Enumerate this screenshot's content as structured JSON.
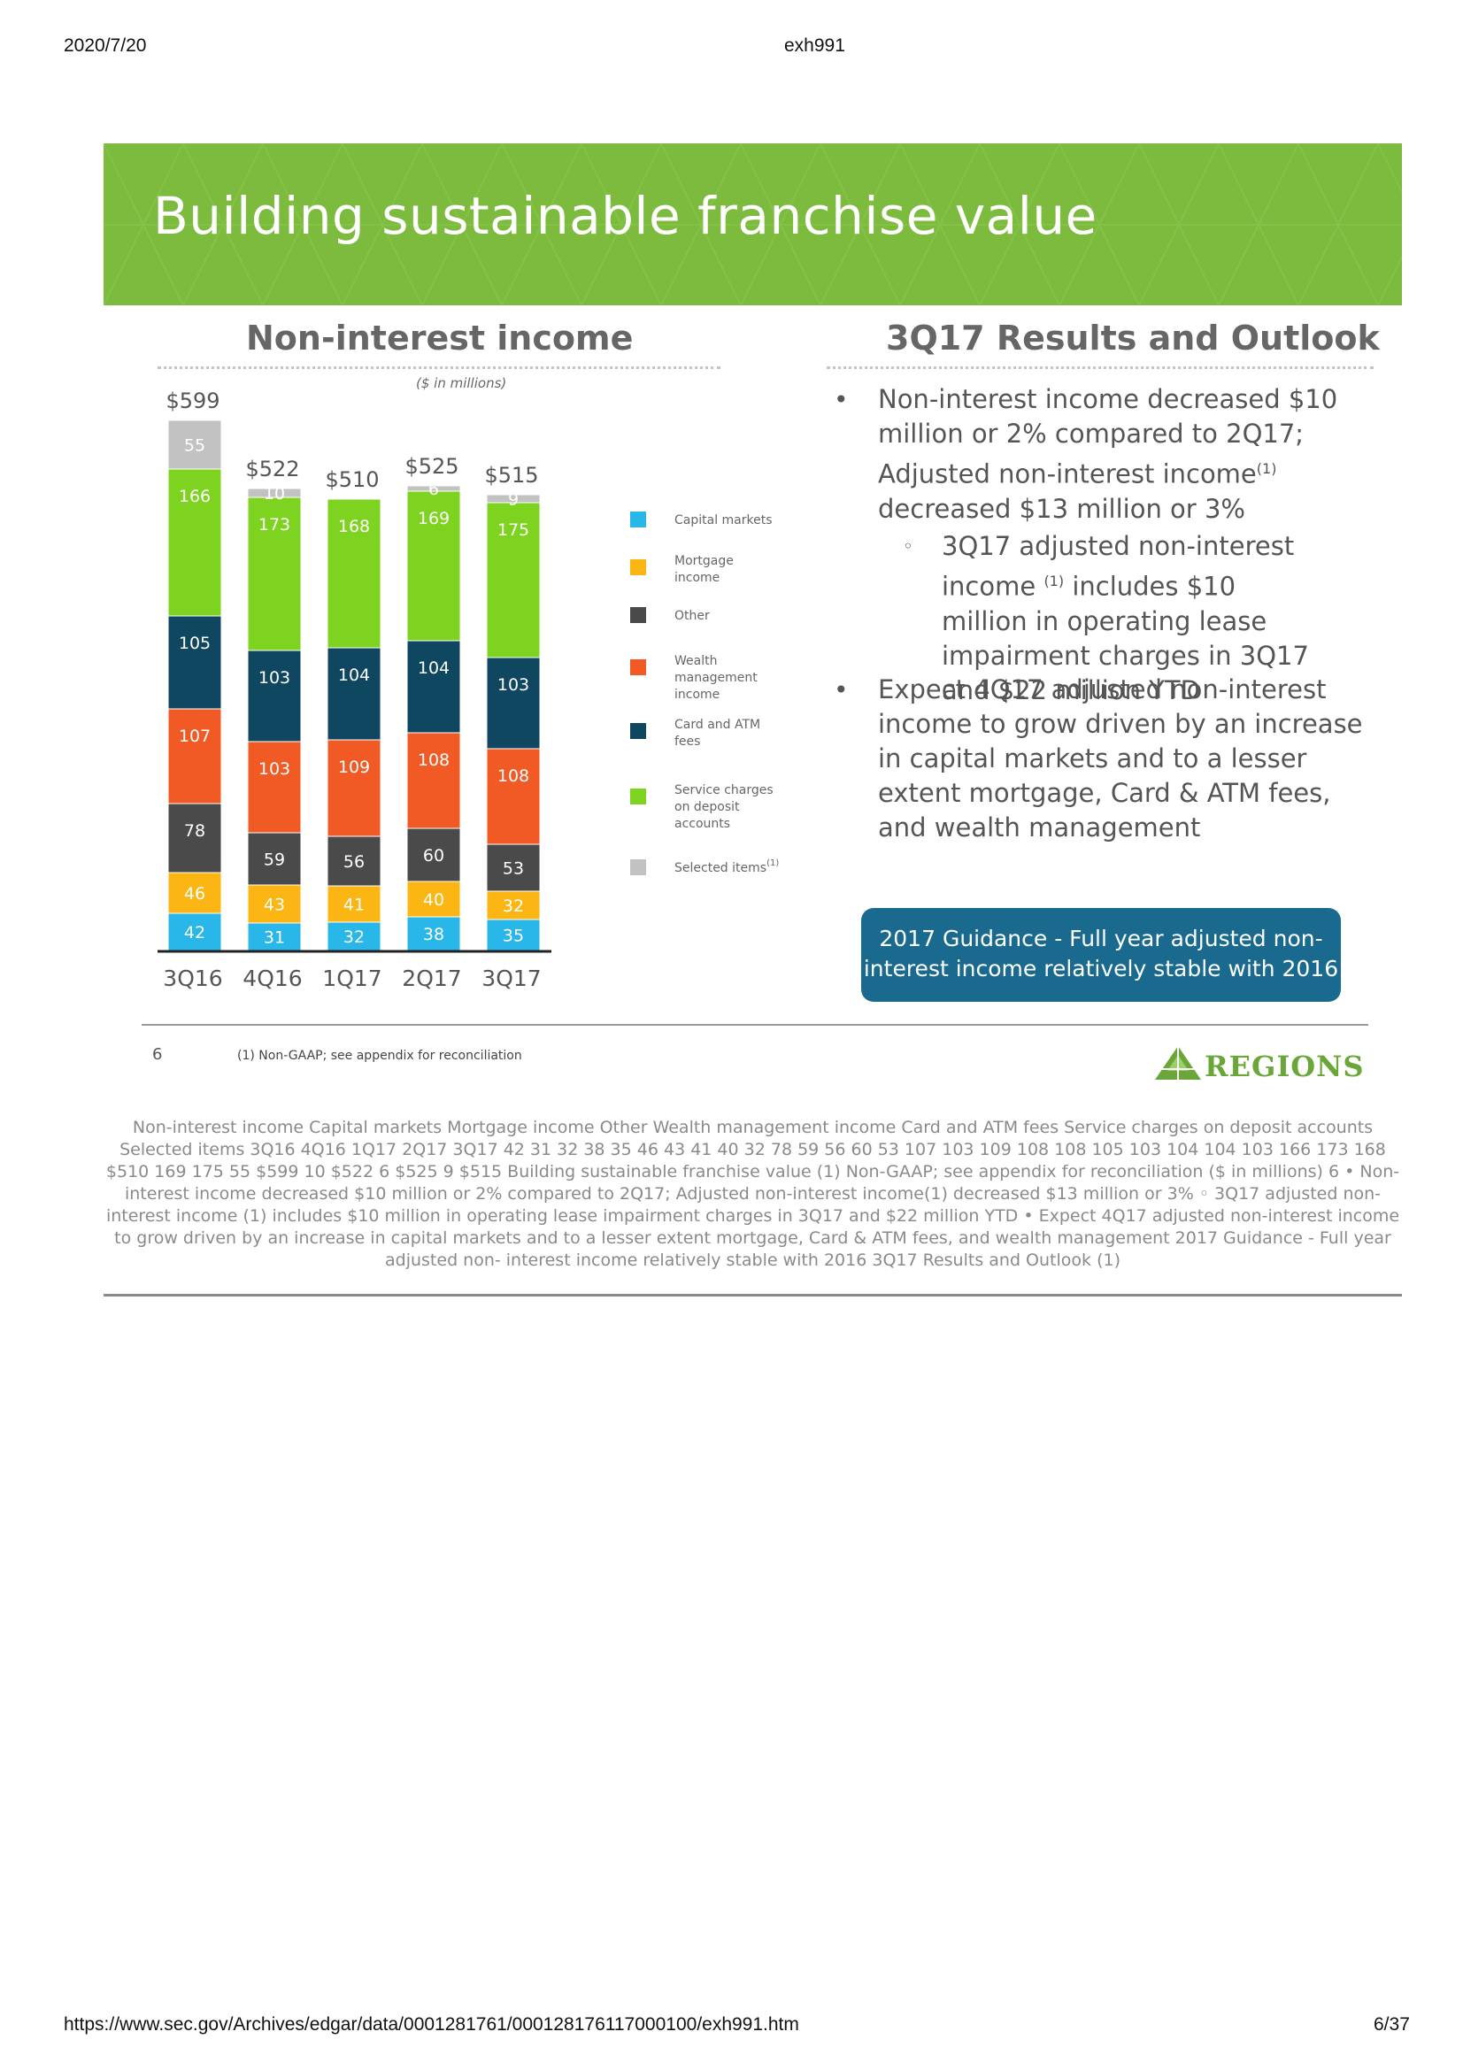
{
  "header": {
    "date": "2020/7/20",
    "doc_name": "exh991"
  },
  "footer": {
    "url": "https://www.sec.gov/Archives/edgar/data/0001281761/000128176117000100/exh991.htm",
    "page": "6/37"
  },
  "banner": {
    "title": "Building sustainable franchise value",
    "color": "#7cbb3e"
  },
  "left_section": {
    "heading": "Non-interest income",
    "units": "($ in millions)"
  },
  "right_section": {
    "heading": "3Q17 Results and Outlook"
  },
  "bullets": {
    "b1": "Non-interest income decreased $10 million or 2% compared to 2Q17; Adjusted non-interest income",
    "b1_sup": "(1)",
    "b1_end": "decreased $13 million or 3%",
    "b1_sub_sup": "(1)",
    "b1_sub_a": "3Q17 adjusted non-interest income",
    "b1_sub_b": "includes $10 million in operating lease impairment charges in 3Q17 and $22 million YTD",
    "b2": "Expect 4Q17 adjusted non-interest income to grow driven by an increase in capital markets and to a lesser extent mortgage, Card & ATM fees, and wealth management"
  },
  "guidance_box": {
    "text": "2017 Guidance - Full year adjusted non-interest income relatively stable with 2016",
    "color": "#1a6a8f"
  },
  "slide_footer": {
    "page_number": "6",
    "footnote": "(1)    Non-GAAP; see appendix for reconciliation"
  },
  "logo": {
    "name": "REGIONS",
    "icon": "regions-pyramid-icon",
    "color": "#6aa638"
  },
  "chart_data": {
    "type": "bar",
    "stacked": true,
    "categories": [
      "3Q16",
      "4Q16",
      "1Q17",
      "2Q17",
      "3Q17"
    ],
    "totals": [
      "$599",
      "$522",
      "$510",
      "$525",
      "$515"
    ],
    "series": [
      {
        "name": "Capital markets",
        "values": [
          42,
          31,
          32,
          38,
          35
        ],
        "color": "#29b6e8"
      },
      {
        "name": "Mortgage income",
        "values": [
          46,
          43,
          41,
          40,
          32
        ],
        "color": "#fcb614"
      },
      {
        "name": "Other",
        "values": [
          78,
          59,
          56,
          60,
          53
        ],
        "color": "#4a4a4a"
      },
      {
        "name": "Wealth management income",
        "values": [
          107,
          103,
          109,
          108,
          108
        ],
        "color": "#f15a24"
      },
      {
        "name": "Card and ATM fees",
        "values": [
          105,
          103,
          104,
          104,
          103
        ],
        "color": "#0f4660"
      },
      {
        "name": "Service charges on deposit accounts",
        "values": [
          166,
          173,
          168,
          169,
          175
        ],
        "color": "#7ed321"
      },
      {
        "name": "Selected items",
        "values": [
          55,
          10,
          0,
          6,
          9
        ],
        "color": "#c2c2c2"
      }
    ],
    "legend_labels": [
      {
        "series": 0,
        "lines": [
          "Capital markets"
        ]
      },
      {
        "series": 1,
        "lines": [
          "Mortgage",
          "income"
        ]
      },
      {
        "series": 2,
        "lines": [
          "Other"
        ]
      },
      {
        "series": 3,
        "lines": [
          "Wealth",
          "management",
          "income"
        ]
      },
      {
        "series": 4,
        "lines": [
          "Card and ATM",
          "fees"
        ]
      },
      {
        "series": 5,
        "lines": [
          "Service charges",
          "on deposit",
          "accounts"
        ]
      },
      {
        "series": 6,
        "lines": [
          "Selected items"
        ],
        "sup": "(1)"
      }
    ],
    "legend_position": "right"
  },
  "alt_text": "Non-interest income Capital markets Mortgage income Other Wealth management income Card and ATM fees Service charges on deposit accounts Selected items 3Q16 4Q16 1Q17 2Q17 3Q17 42 31 32 38 35 46 43 41 40 32 78 59 56 60 53 107 103 109 108 108 105 103 104 104 103 166 173 168 $510 169 175 55 $599 10 $522 6 $525 9 $515 Building sustainable franchise value (1) Non-GAAP; see appendix for reconciliation ($ in millions) 6 • Non-interest income decreased $10 million or 2% compared to 2Q17; Adjusted non-interest income(1) decreased $13 million or 3% ◦ 3Q17 adjusted non-interest income (1) includes $10 million in operating lease impairment charges in 3Q17 and $22 million YTD • Expect 4Q17 adjusted non-interest income to grow driven by an increase in capital markets and to a lesser extent mortgage, Card & ATM fees, and wealth management 2017 Guidance - Full year adjusted non- interest income relatively stable with 2016 3Q17 Results and Outlook (1)"
}
